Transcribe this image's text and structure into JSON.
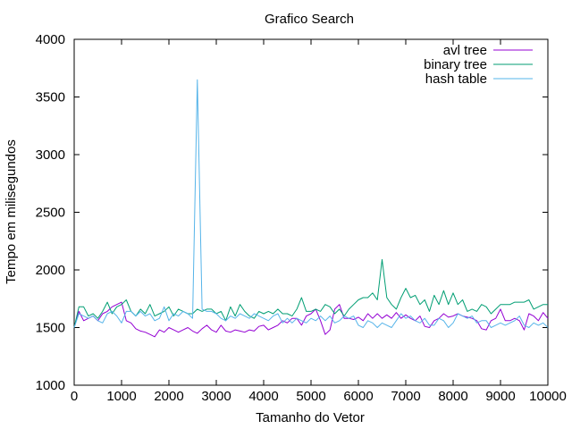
{
  "chart_data": {
    "type": "line",
    "title": "Grafico Search",
    "xlabel": "Tamanho do Vetor",
    "ylabel": "Tempo em milisegundos",
    "xlim": [
      0,
      10000
    ],
    "ylim": [
      1000,
      4000
    ],
    "xticks": [
      0,
      1000,
      2000,
      3000,
      4000,
      5000,
      6000,
      7000,
      8000,
      9000,
      10000
    ],
    "yticks": [
      1000,
      1500,
      2000,
      2500,
      3000,
      3500,
      4000
    ],
    "grid": false,
    "legend_position": "top-right",
    "x": [
      0,
      100,
      200,
      300,
      400,
      500,
      600,
      700,
      800,
      900,
      1000,
      1100,
      1200,
      1300,
      1400,
      1500,
      1600,
      1700,
      1800,
      1900,
      2000,
      2100,
      2200,
      2300,
      2400,
      2500,
      2600,
      2700,
      2800,
      2900,
      3000,
      3100,
      3200,
      3300,
      3400,
      3500,
      3600,
      3700,
      3800,
      3900,
      4000,
      4100,
      4200,
      4300,
      4400,
      4500,
      4600,
      4700,
      4800,
      4900,
      5000,
      5100,
      5200,
      5300,
      5400,
      5500,
      5600,
      5700,
      5800,
      5900,
      6000,
      6100,
      6200,
      6300,
      6400,
      6500,
      6600,
      6700,
      6800,
      6900,
      7000,
      7100,
      7200,
      7300,
      7400,
      7500,
      7600,
      7700,
      7800,
      7900,
      8000,
      8100,
      8200,
      8300,
      8400,
      8500,
      8600,
      8700,
      8800,
      8900,
      9000,
      9100,
      9200,
      9300,
      9400,
      9500,
      9600,
      9700,
      9800,
      9900,
      10000
    ],
    "series": [
      {
        "name": "avl tree",
        "color": "#9400d3",
        "values": [
          1500,
          1640,
          1560,
          1580,
          1600,
          1560,
          1620,
          1640,
          1680,
          1700,
          1720,
          1560,
          1540,
          1490,
          1470,
          1460,
          1440,
          1420,
          1480,
          1460,
          1500,
          1480,
          1460,
          1480,
          1500,
          1470,
          1450,
          1490,
          1520,
          1480,
          1460,
          1520,
          1470,
          1460,
          1480,
          1470,
          1460,
          1480,
          1470,
          1510,
          1520,
          1480,
          1500,
          1520,
          1560,
          1540,
          1580,
          1580,
          1520,
          1600,
          1620,
          1660,
          1560,
          1440,
          1480,
          1660,
          1700,
          1580,
          1580,
          1570,
          1590,
          1560,
          1620,
          1580,
          1620,
          1580,
          1610,
          1580,
          1630,
          1580,
          1610,
          1580,
          1560,
          1600,
          1510,
          1500,
          1560,
          1580,
          1620,
          1590,
          1600,
          1620,
          1600,
          1590,
          1580,
          1560,
          1490,
          1480,
          1560,
          1580,
          1660,
          1560,
          1560,
          1580,
          1560,
          1480,
          1620,
          1600,
          1560,
          1630,
          1580
        ]
      },
      {
        "name": "binary tree",
        "color": "#009e73",
        "values": [
          1500,
          1680,
          1680,
          1600,
          1620,
          1580,
          1640,
          1720,
          1620,
          1680,
          1700,
          1740,
          1640,
          1600,
          1660,
          1620,
          1700,
          1600,
          1620,
          1640,
          1680,
          1600,
          1660,
          1640,
          1620,
          1620,
          1660,
          1640,
          1660,
          1660,
          1620,
          1640,
          1560,
          1680,
          1600,
          1700,
          1640,
          1600,
          1580,
          1640,
          1620,
          1640,
          1620,
          1660,
          1620,
          1620,
          1600,
          1660,
          1760,
          1640,
          1640,
          1660,
          1640,
          1700,
          1680,
          1620,
          1660,
          1600,
          1660,
          1700,
          1740,
          1760,
          1760,
          1800,
          1740,
          2090,
          1760,
          1700,
          1660,
          1760,
          1840,
          1760,
          1780,
          1700,
          1740,
          1640,
          1780,
          1700,
          1820,
          1700,
          1800,
          1700,
          1740,
          1640,
          1660,
          1640,
          1700,
          1680,
          1620,
          1660,
          1700,
          1700,
          1700,
          1720,
          1720,
          1720,
          1740,
          1660,
          1680,
          1700,
          1700
        ]
      },
      {
        "name": "hash table",
        "color": "#56b4e9",
        "values": [
          1500,
          1620,
          1600,
          1580,
          1600,
          1560,
          1540,
          1620,
          1640,
          1600,
          1540,
          1640,
          1640,
          1600,
          1640,
          1600,
          1620,
          1560,
          1580,
          1680,
          1560,
          1620,
          1600,
          1640,
          1620,
          1580,
          3650,
          1660,
          1640,
          1640,
          1620,
          1580,
          1560,
          1600,
          1580,
          1620,
          1600,
          1580,
          1620,
          1600,
          1580,
          1560,
          1600,
          1620,
          1540,
          1580,
          1540,
          1580,
          1560,
          1540,
          1580,
          1560,
          1600,
          1560,
          1600,
          1540,
          1560,
          1600,
          1580,
          1600,
          1520,
          1500,
          1560,
          1540,
          1500,
          1540,
          1520,
          1500,
          1560,
          1620,
          1580,
          1600,
          1560,
          1540,
          1580,
          1520,
          1520,
          1580,
          1560,
          1500,
          1540,
          1620,
          1600,
          1580,
          1600,
          1540,
          1560,
          1560,
          1500,
          1520,
          1540,
          1520,
          1540,
          1560,
          1600,
          1520,
          1500,
          1540,
          1520,
          1540,
          1500
        ]
      }
    ]
  }
}
